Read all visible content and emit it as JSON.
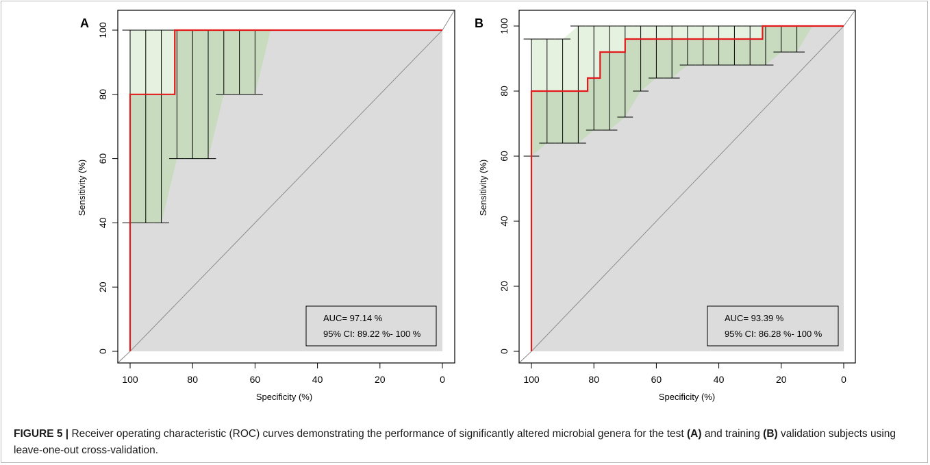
{
  "colors": {
    "roc": "#e31a1c",
    "ci_upper_fill": "#e6f2e0",
    "ci_lower_fill": "#c8dbbf",
    "roc_area_fill": "#dcdcdc",
    "diagonal": "#8c8c8c"
  },
  "chart_data": [
    {
      "type": "line",
      "panel": "A",
      "xlabel": "Specificity (%)",
      "ylabel": "Sensitivity (%)",
      "xlim": [
        100,
        0
      ],
      "ylim": [
        0,
        100
      ],
      "x_ticks": [
        "100",
        "80",
        "60",
        "40",
        "20",
        "0"
      ],
      "y_ticks": [
        "0",
        "20",
        "40",
        "60",
        "80",
        "100"
      ],
      "x_reversed": true,
      "grid": false,
      "roc_curve": {
        "specificity": [
          100,
          100,
          85.7,
          85.7,
          0
        ],
        "sensitivity": [
          0,
          80,
          80,
          100,
          100
        ]
      },
      "confidence_bars": [
        {
          "spec": 100,
          "low": 40,
          "high": 100
        },
        {
          "spec": 95,
          "low": 40,
          "high": 100
        },
        {
          "spec": 90,
          "low": 40,
          "high": 100
        },
        {
          "spec": 85,
          "low": 60,
          "high": 100
        },
        {
          "spec": 80,
          "low": 60,
          "high": 100
        },
        {
          "spec": 75,
          "low": 60,
          "high": 100
        },
        {
          "spec": 70,
          "low": 80,
          "high": 100
        },
        {
          "spec": 65,
          "low": 80,
          "high": 100
        },
        {
          "spec": 60,
          "low": 80,
          "high": 100
        },
        {
          "spec": 55,
          "low": 100,
          "high": 100
        }
      ],
      "legend": {
        "placement": "bottom-right",
        "auc": "AUC= 97.14 %",
        "ci": "95% CI: 89.22 %- 100 %"
      }
    },
    {
      "type": "line",
      "panel": "B",
      "xlabel": "Specificity (%)",
      "ylabel": "Sensitivity (%)",
      "xlim": [
        100,
        0
      ],
      "ylim": [
        0,
        100
      ],
      "x_ticks": [
        "100",
        "80",
        "60",
        "40",
        "20",
        "0"
      ],
      "y_ticks": [
        "0",
        "20",
        "40",
        "60",
        "80",
        "100"
      ],
      "x_reversed": true,
      "grid": false,
      "roc_curve": {
        "specificity": [
          100,
          100,
          82,
          82,
          78,
          78,
          70,
          70,
          26,
          26,
          0
        ],
        "sensitivity": [
          0,
          80,
          80,
          84,
          84,
          92,
          92,
          96,
          96,
          100,
          100
        ]
      },
      "confidence_bars": [
        {
          "spec": 100,
          "low": 60,
          "high": 96
        },
        {
          "spec": 95,
          "low": 64,
          "high": 96
        },
        {
          "spec": 90,
          "low": 64,
          "high": 96
        },
        {
          "spec": 85,
          "low": 64,
          "high": 100
        },
        {
          "spec": 80,
          "low": 68,
          "high": 100
        },
        {
          "spec": 75,
          "low": 68,
          "high": 100
        },
        {
          "spec": 70,
          "low": 72,
          "high": 100
        },
        {
          "spec": 65,
          "low": 80,
          "high": 100
        },
        {
          "spec": 60,
          "low": 84,
          "high": 100
        },
        {
          "spec": 55,
          "low": 84,
          "high": 100
        },
        {
          "spec": 50,
          "low": 88,
          "high": 100
        },
        {
          "spec": 45,
          "low": 88,
          "high": 100
        },
        {
          "spec": 40,
          "low": 88,
          "high": 100
        },
        {
          "spec": 35,
          "low": 88,
          "high": 100
        },
        {
          "spec": 30,
          "low": 88,
          "high": 100
        },
        {
          "spec": 25,
          "low": 88,
          "high": 100
        },
        {
          "spec": 20,
          "low": 92,
          "high": 100
        },
        {
          "spec": 15,
          "low": 92,
          "high": 100
        },
        {
          "spec": 10,
          "low": 100,
          "high": 100
        }
      ],
      "legend": {
        "placement": "bottom-right",
        "auc": "AUC= 93.39 %",
        "ci": "95% CI: 86.28 %- 100 %"
      }
    }
  ],
  "caption": {
    "label": "FIGURE 5 |",
    "text_1": " Receiver operating characteristic (ROC) curves demonstrating the performance of significantly altered microbial genera for the test ",
    "panel_a": "(A)",
    "text_2": " and training ",
    "panel_b": "(B)",
    "text_3": " validation subjects using leave-one-out cross-validation."
  }
}
